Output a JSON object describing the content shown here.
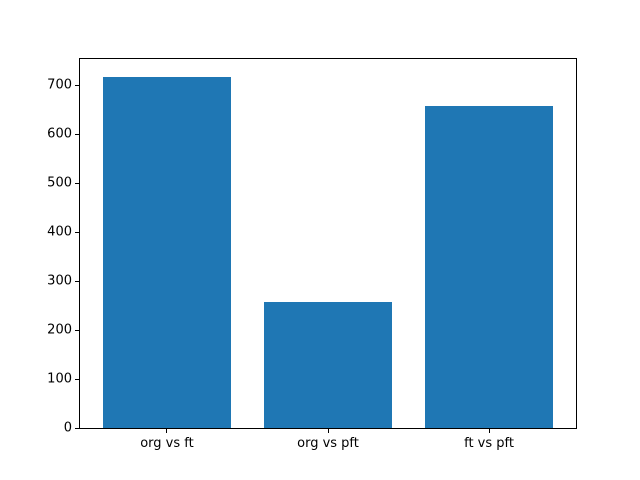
{
  "figure": {
    "background_color": "#ffffff",
    "spine_color": "#000000",
    "tick_color": "#000000"
  },
  "chart_data": {
    "type": "bar",
    "title": "",
    "xlabel": "",
    "ylabel": "",
    "categories": [
      "org vs ft",
      "org vs pft",
      "ft vs pft"
    ],
    "values": [
      718,
      257,
      657
    ],
    "x_positions": [
      0,
      1,
      2
    ],
    "bar_width": 0.8,
    "bar_color": "#1f77b4",
    "xlim": [
      -0.54,
      2.54
    ],
    "ylim": [
      0,
      754
    ],
    "yticks": [
      0,
      100,
      200,
      300,
      400,
      500,
      600,
      700
    ],
    "grid": false,
    "legend_position": "none"
  }
}
